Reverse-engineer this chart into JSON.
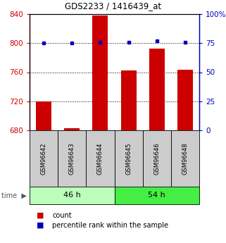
{
  "title": "GDS2233 / 1416439_at",
  "samples": [
    "GSM96642",
    "GSM96643",
    "GSM96644",
    "GSM96645",
    "GSM96646",
    "GSM96648"
  ],
  "bar_values": [
    720,
    683,
    838,
    762,
    792,
    763
  ],
  "percentile_values": [
    75,
    75,
    76,
    76,
    77,
    76
  ],
  "bar_baseline": 680,
  "left_ylim": [
    680,
    840
  ],
  "right_ylim": [
    0,
    100
  ],
  "left_yticks": [
    680,
    720,
    760,
    800,
    840
  ],
  "right_yticks": [
    0,
    25,
    50,
    75,
    100
  ],
  "right_yticklabels": [
    "0",
    "25",
    "50",
    "75",
    "100%"
  ],
  "bar_color": "#cc0000",
  "dot_color": "#0000bb",
  "groups": [
    "46 h",
    "54 h"
  ],
  "group_sizes": [
    3,
    3
  ],
  "group_color_light": "#bbffbb",
  "group_color_dark": "#44ee44",
  "left_axis_color": "#cc0000",
  "right_axis_color": "#0000bb",
  "grid_color": "#000000",
  "bar_width": 0.55,
  "legend_count_label": "count",
  "legend_pct_label": "percentile rank within the sample"
}
